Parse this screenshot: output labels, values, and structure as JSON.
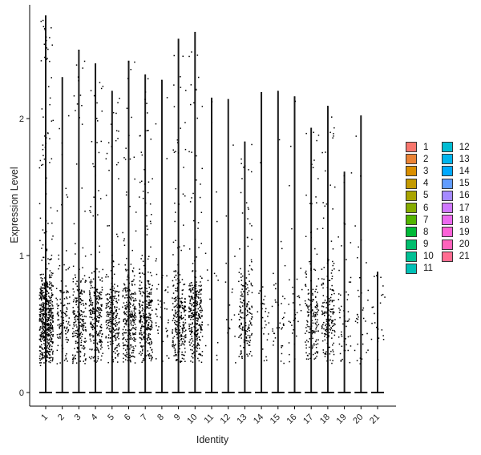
{
  "chart_data": {
    "type": "violin",
    "xlabel": "Identity",
    "ylabel": "Expression Level",
    "ylim": [
      -0.15,
      2.85
    ],
    "yticks": [
      0,
      1,
      2
    ],
    "categories": [
      "1",
      "2",
      "3",
      "4",
      "5",
      "6",
      "7",
      "8",
      "9",
      "10",
      "11",
      "12",
      "13",
      "14",
      "15",
      "16",
      "17",
      "18",
      "19",
      "20",
      "21"
    ],
    "max_values": [
      2.75,
      2.3,
      2.5,
      2.4,
      2.2,
      2.42,
      2.32,
      2.28,
      2.58,
      2.63,
      2.15,
      2.14,
      1.83,
      2.19,
      2.2,
      2.16,
      1.93,
      2.09,
      1.61,
      2.02,
      0.88
    ],
    "point_density": [
      1.0,
      0.2,
      0.35,
      0.42,
      0.38,
      0.45,
      0.5,
      0.07,
      0.45,
      0.5,
      0.02,
      0.02,
      0.3,
      0.04,
      0.06,
      0.05,
      0.28,
      0.3,
      0.08,
      0.05,
      0.03
    ],
    "zero_baseline": true,
    "grid": false,
    "legend_position": "right",
    "legend": [
      "1",
      "2",
      "3",
      "4",
      "5",
      "6",
      "7",
      "8",
      "9",
      "10",
      "11",
      "12",
      "13",
      "14",
      "15",
      "16",
      "17",
      "18",
      "19",
      "20",
      "21"
    ],
    "colors": [
      "#F8766D",
      "#EB8335",
      "#DA8F00",
      "#C49A00",
      "#A9A400",
      "#86AC00",
      "#53B400",
      "#00BA38",
      "#00BE6D",
      "#00C094",
      "#00C0B6",
      "#00BDD4",
      "#00B5EE",
      "#00A9FF",
      "#619CFF",
      "#A58AFF",
      "#D078FF",
      "#EC69EF",
      "#FB61D7",
      "#FF62BC",
      "#FF6C91"
    ]
  }
}
